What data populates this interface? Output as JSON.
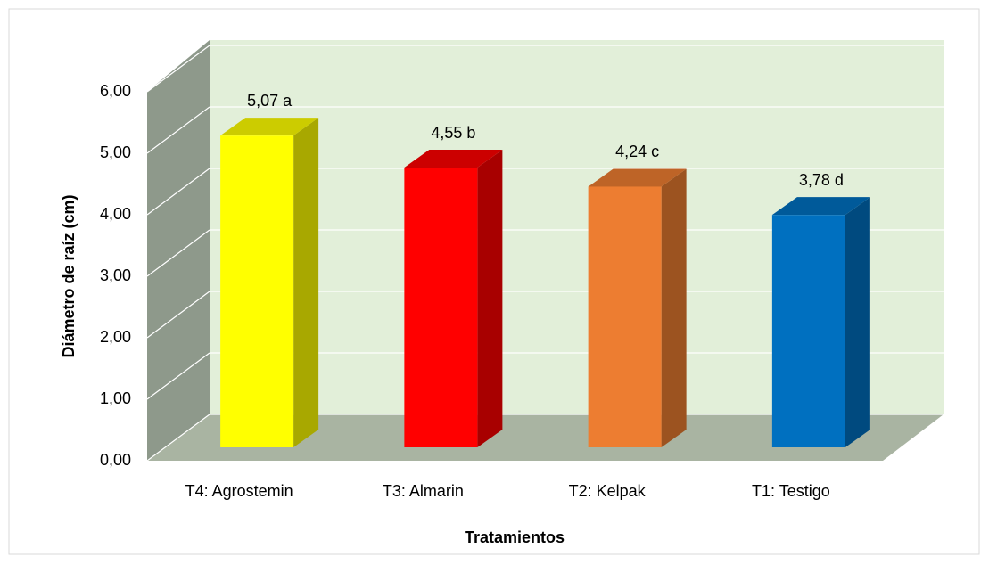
{
  "chart_data": {
    "type": "bar3d",
    "categories": [
      "T4: Agrostemin",
      "T3: Almarin",
      "T2: Kelpak",
      "T1: Testigo"
    ],
    "values": [
      5.07,
      4.55,
      4.24,
      3.78
    ],
    "value_labels": [
      "5,07 a",
      "4,55 b",
      "4,24 c",
      "3,78 d"
    ],
    "colors": [
      "#ffff00",
      "#ff0000",
      "#ed7d31",
      "#0070c0"
    ],
    "x_label": "Tratamientos",
    "y_label": "Diámetro de raíz (cm)",
    "ylim": [
      0,
      6
    ],
    "yticks": [
      {
        "value": 0,
        "label": "0,00"
      },
      {
        "value": 1,
        "label": "1,00"
      },
      {
        "value": 2,
        "label": "2,00"
      },
      {
        "value": 3,
        "label": "3,00"
      },
      {
        "value": 4,
        "label": "4,00"
      },
      {
        "value": 5,
        "label": "5,00"
      },
      {
        "value": 6,
        "label": "6,00"
      }
    ],
    "grid": true
  }
}
